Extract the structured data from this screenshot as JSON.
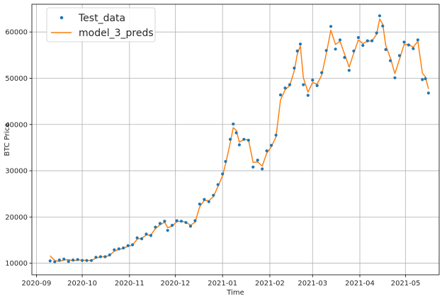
{
  "chart_data": {
    "type": "line",
    "xlabel": "Time",
    "ylabel": "BTC Price",
    "grid": true,
    "legend_position": "top-left",
    "xlim": [
      "2020-08-29",
      "2021-05-23"
    ],
    "ylim": [
      7500,
      66000
    ],
    "x_ticks": [
      {
        "date": "2020-09-01",
        "label": "2020-09"
      },
      {
        "date": "2020-10-01",
        "label": "2020-10"
      },
      {
        "date": "2020-11-01",
        "label": "2020-11"
      },
      {
        "date": "2020-12-01",
        "label": "2020-12"
      },
      {
        "date": "2021-01-01",
        "label": "2021-01"
      },
      {
        "date": "2021-02-01",
        "label": "2021-02"
      },
      {
        "date": "2021-03-01",
        "label": "2021-03"
      },
      {
        "date": "2021-04-01",
        "label": "2021-04"
      },
      {
        "date": "2021-05-01",
        "label": "2021-05"
      }
    ],
    "y_ticks": [
      {
        "value": 10000,
        "label": "10000"
      },
      {
        "value": 20000,
        "label": "20000"
      },
      {
        "value": 30000,
        "label": "30000"
      },
      {
        "value": 40000,
        "label": "40000"
      },
      {
        "value": 50000,
        "label": "50000"
      },
      {
        "value": 60000,
        "label": "60000"
      }
    ],
    "series": [
      {
        "name": "Test_data",
        "kind": "scatter",
        "color": "#1f77b4",
        "points": [
          [
            "2020-09-10",
            10500
          ],
          [
            "2020-09-13",
            10300
          ],
          [
            "2020-09-16",
            10700
          ],
          [
            "2020-09-19",
            10900
          ],
          [
            "2020-09-22",
            10400
          ],
          [
            "2020-09-25",
            10700
          ],
          [
            "2020-09-28",
            10800
          ],
          [
            "2020-10-01",
            10600
          ],
          [
            "2020-10-04",
            10600
          ],
          [
            "2020-10-07",
            10600
          ],
          [
            "2020-10-10",
            11300
          ],
          [
            "2020-10-13",
            11400
          ],
          [
            "2020-10-16",
            11400
          ],
          [
            "2020-10-19",
            11800
          ],
          [
            "2020-10-22",
            12900
          ],
          [
            "2020-10-25",
            13100
          ],
          [
            "2020-10-28",
            13300
          ],
          [
            "2020-10-31",
            13800
          ],
          [
            "2020-11-03",
            14000
          ],
          [
            "2020-11-06",
            15500
          ],
          [
            "2020-11-09",
            15300
          ],
          [
            "2020-11-12",
            16300
          ],
          [
            "2020-11-15",
            16000
          ],
          [
            "2020-11-18",
            17800
          ],
          [
            "2020-11-21",
            18600
          ],
          [
            "2020-11-24",
            19100
          ],
          [
            "2020-11-26",
            17100
          ],
          [
            "2020-11-29",
            18200
          ],
          [
            "2020-12-02",
            19200
          ],
          [
            "2020-12-05",
            19100
          ],
          [
            "2020-12-08",
            18800
          ],
          [
            "2020-12-11",
            18000
          ],
          [
            "2020-12-14",
            19200
          ],
          [
            "2020-12-17",
            22800
          ],
          [
            "2020-12-20",
            23800
          ],
          [
            "2020-12-23",
            23300
          ],
          [
            "2020-12-26",
            24700
          ],
          [
            "2020-12-29",
            27000
          ],
          [
            "2021-01-01",
            29300
          ],
          [
            "2021-01-03",
            32000
          ],
          [
            "2021-01-06",
            36800
          ],
          [
            "2021-01-08",
            40100
          ],
          [
            "2021-01-10",
            38200
          ],
          [
            "2021-01-12",
            35600
          ],
          [
            "2021-01-15",
            36800
          ],
          [
            "2021-01-18",
            36600
          ],
          [
            "2021-01-21",
            30800
          ],
          [
            "2021-01-24",
            32300
          ],
          [
            "2021-01-27",
            30400
          ],
          [
            "2021-01-30",
            34300
          ],
          [
            "2021-02-02",
            35500
          ],
          [
            "2021-02-05",
            37700
          ],
          [
            "2021-02-08",
            46400
          ],
          [
            "2021-02-11",
            47900
          ],
          [
            "2021-02-14",
            48600
          ],
          [
            "2021-02-17",
            52200
          ],
          [
            "2021-02-19",
            55900
          ],
          [
            "2021-02-21",
            57400
          ],
          [
            "2021-02-23",
            48600
          ],
          [
            "2021-02-26",
            46300
          ],
          [
            "2021-03-01",
            49600
          ],
          [
            "2021-03-04",
            48400
          ],
          [
            "2021-03-07",
            51200
          ],
          [
            "2021-03-10",
            56000
          ],
          [
            "2021-03-13",
            61200
          ],
          [
            "2021-03-16",
            56300
          ],
          [
            "2021-03-19",
            58300
          ],
          [
            "2021-03-22",
            54500
          ],
          [
            "2021-03-25",
            51700
          ],
          [
            "2021-03-28",
            55900
          ],
          [
            "2021-03-31",
            58800
          ],
          [
            "2021-04-03",
            57100
          ],
          [
            "2021-04-06",
            58100
          ],
          [
            "2021-04-09",
            58100
          ],
          [
            "2021-04-12",
            59800
          ],
          [
            "2021-04-14",
            63500
          ],
          [
            "2021-04-16",
            61300
          ],
          [
            "2021-04-18",
            56200
          ],
          [
            "2021-04-21",
            53800
          ],
          [
            "2021-04-24",
            50100
          ],
          [
            "2021-04-27",
            54900
          ],
          [
            "2021-04-30",
            57800
          ],
          [
            "2021-05-03",
            57200
          ],
          [
            "2021-05-06",
            56400
          ],
          [
            "2021-05-09",
            58300
          ],
          [
            "2021-05-12",
            49700
          ],
          [
            "2021-05-14",
            49900
          ],
          [
            "2021-05-16",
            46800
          ]
        ]
      },
      {
        "name": "model_3_preds",
        "kind": "line",
        "color": "#ff7f0e",
        "points": [
          [
            "2020-09-10",
            11600
          ],
          [
            "2020-09-13",
            10600
          ],
          [
            "2020-09-16",
            10400
          ],
          [
            "2020-09-19",
            10700
          ],
          [
            "2020-09-22",
            10800
          ],
          [
            "2020-09-25",
            10500
          ],
          [
            "2020-09-28",
            10700
          ],
          [
            "2020-10-01",
            10700
          ],
          [
            "2020-10-04",
            10600
          ],
          [
            "2020-10-07",
            10600
          ],
          [
            "2020-10-10",
            11100
          ],
          [
            "2020-10-13",
            11400
          ],
          [
            "2020-10-16",
            11400
          ],
          [
            "2020-10-19",
            11700
          ],
          [
            "2020-10-22",
            12600
          ],
          [
            "2020-10-25",
            13000
          ],
          [
            "2020-10-28",
            13200
          ],
          [
            "2020-10-31",
            13700
          ],
          [
            "2020-11-03",
            13900
          ],
          [
            "2020-11-06",
            15200
          ],
          [
            "2020-11-09",
            15400
          ],
          [
            "2020-11-12",
            16100
          ],
          [
            "2020-11-15",
            16100
          ],
          [
            "2020-11-18",
            17500
          ],
          [
            "2020-11-21",
            18300
          ],
          [
            "2020-11-24",
            18900
          ],
          [
            "2020-11-26",
            17700
          ],
          [
            "2020-11-29",
            18000
          ],
          [
            "2020-12-02",
            19000
          ],
          [
            "2020-12-05",
            19100
          ],
          [
            "2020-12-08",
            18900
          ],
          [
            "2020-12-11",
            18200
          ],
          [
            "2020-12-14",
            18900
          ],
          [
            "2020-12-17",
            22200
          ],
          [
            "2020-12-20",
            23600
          ],
          [
            "2020-12-23",
            23500
          ],
          [
            "2020-12-26",
            24400
          ],
          [
            "2020-12-29",
            26600
          ],
          [
            "2021-01-01",
            28900
          ],
          [
            "2021-01-03",
            31500
          ],
          [
            "2021-01-06",
            36000
          ],
          [
            "2021-01-08",
            39300
          ],
          [
            "2021-01-10",
            38700
          ],
          [
            "2021-01-12",
            36200
          ],
          [
            "2021-01-15",
            36700
          ],
          [
            "2021-01-18",
            36700
          ],
          [
            "2021-01-21",
            31800
          ],
          [
            "2021-01-24",
            31900
          ],
          [
            "2021-01-27",
            31000
          ],
          [
            "2021-01-30",
            33800
          ],
          [
            "2021-02-02",
            35200
          ],
          [
            "2021-02-05",
            37300
          ],
          [
            "2021-02-08",
            45300
          ],
          [
            "2021-02-11",
            47500
          ],
          [
            "2021-02-14",
            48400
          ],
          [
            "2021-02-17",
            51600
          ],
          [
            "2021-02-19",
            55200
          ],
          [
            "2021-02-21",
            57000
          ],
          [
            "2021-02-23",
            50100
          ],
          [
            "2021-02-26",
            47000
          ],
          [
            "2021-03-01",
            49100
          ],
          [
            "2021-03-04",
            48700
          ],
          [
            "2021-03-07",
            50700
          ],
          [
            "2021-03-10",
            55300
          ],
          [
            "2021-03-13",
            60400
          ],
          [
            "2021-03-16",
            57300
          ],
          [
            "2021-03-19",
            58000
          ],
          [
            "2021-03-22",
            55200
          ],
          [
            "2021-03-25",
            52400
          ],
          [
            "2021-03-28",
            55400
          ],
          [
            "2021-03-31",
            58300
          ],
          [
            "2021-04-03",
            57500
          ],
          [
            "2021-04-06",
            58000
          ],
          [
            "2021-04-09",
            58100
          ],
          [
            "2021-04-12",
            59500
          ],
          [
            "2021-04-14",
            62800
          ],
          [
            "2021-04-16",
            61700
          ],
          [
            "2021-04-18",
            57100
          ],
          [
            "2021-04-21",
            54400
          ],
          [
            "2021-04-24",
            51000
          ],
          [
            "2021-04-27",
            54100
          ],
          [
            "2021-04-30",
            57300
          ],
          [
            "2021-05-03",
            57300
          ],
          [
            "2021-05-06",
            56700
          ],
          [
            "2021-05-09",
            58000
          ],
          [
            "2021-05-12",
            51100
          ],
          [
            "2021-05-14",
            50300
          ],
          [
            "2021-05-16",
            47700
          ]
        ]
      }
    ]
  }
}
